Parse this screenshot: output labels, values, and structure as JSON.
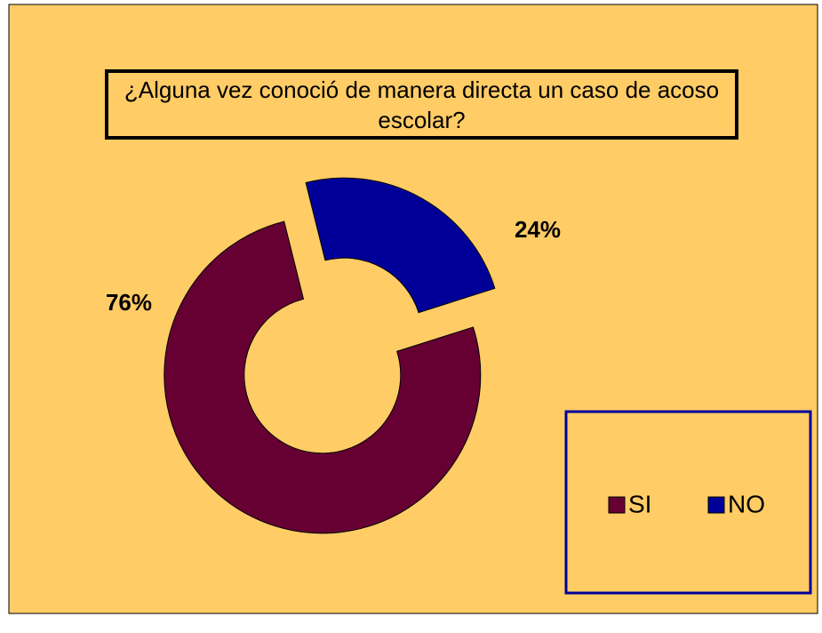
{
  "chart_data": {
    "type": "donut",
    "title": "¿Alguna vez conoció de manera directa un caso de acoso escolar?",
    "categories": [
      "SI",
      "NO"
    ],
    "values": [
      76,
      24
    ],
    "value_labels": [
      "76%",
      "24%"
    ],
    "colors": [
      "#660033",
      "#000099"
    ],
    "legend": "right"
  }
}
